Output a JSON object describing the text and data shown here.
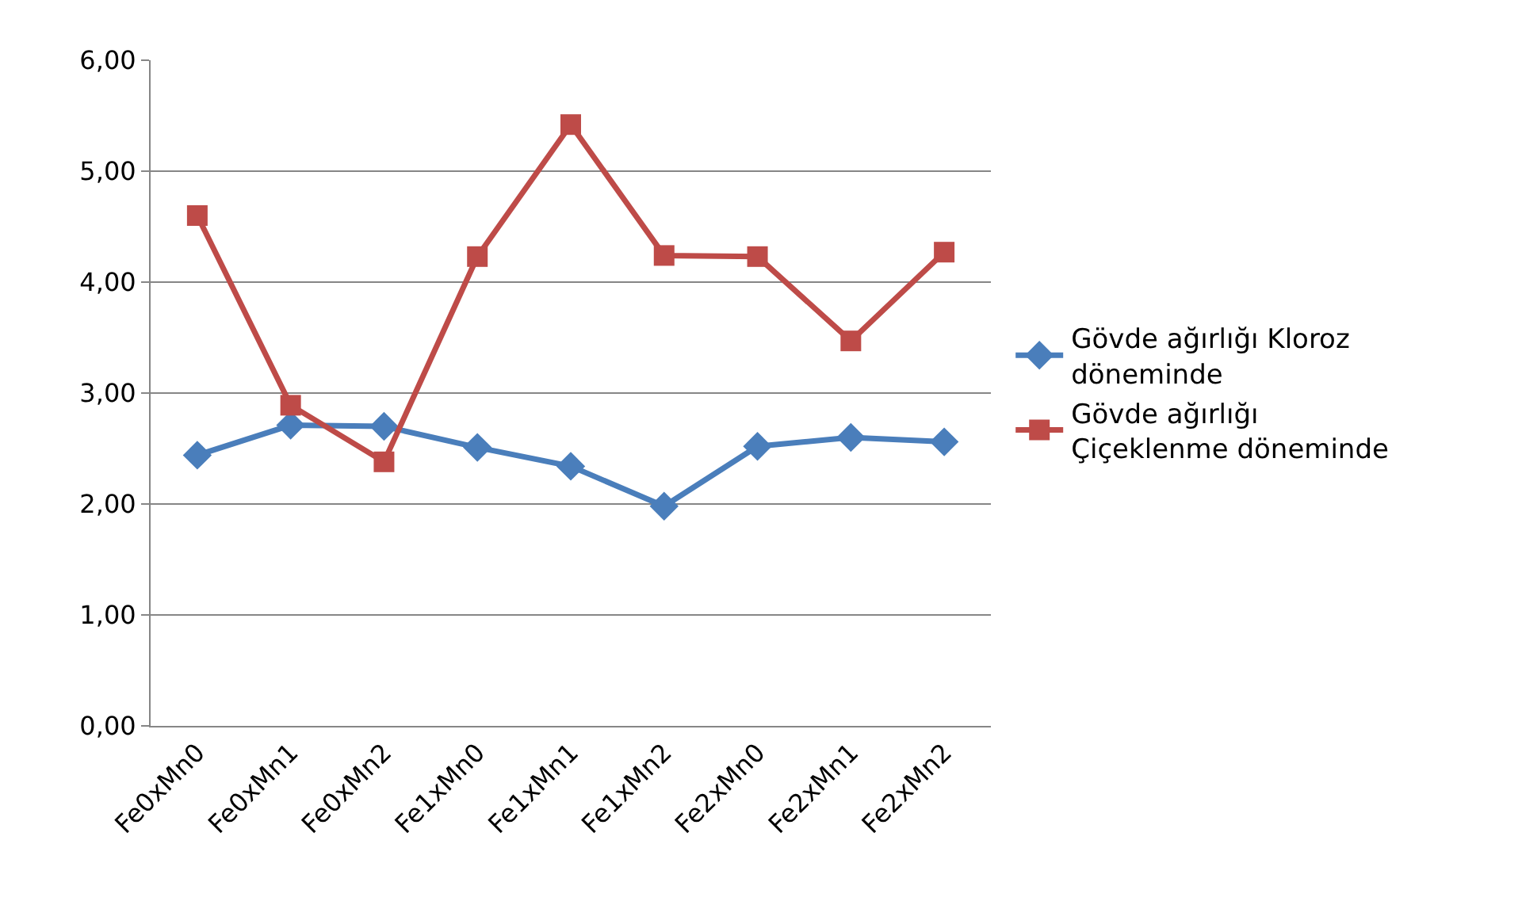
{
  "chart_data": {
    "type": "line",
    "categories": [
      "Fe0xMn0",
      "Fe0xMn1",
      "Fe0xMn2",
      "Fe1xMn0",
      "Fe1xMn1",
      "Fe1xMn2",
      "Fe2xMn0",
      "Fe2xMn1",
      "Fe2xMn2"
    ],
    "series": [
      {
        "name": "Gövde ağırlığı Kloroz döneminde",
        "color": "#4a7ebb",
        "marker": "diamond",
        "values": [
          2.44,
          2.71,
          2.7,
          2.51,
          2.34,
          1.98,
          2.52,
          2.6,
          2.56
        ]
      },
      {
        "name": "Gövde ağırlığı Çiçeklenme döneminde",
        "color": "#be4b48",
        "marker": "square",
        "values": [
          4.6,
          2.89,
          2.38,
          4.23,
          5.42,
          4.24,
          4.23,
          3.47,
          4.27
        ]
      }
    ],
    "ylim": [
      0,
      6
    ],
    "yticks": [
      {
        "value": 0,
        "label": "0,00"
      },
      {
        "value": 1,
        "label": "1,00"
      },
      {
        "value": 2,
        "label": "2,00"
      },
      {
        "value": 3,
        "label": "3,00"
      },
      {
        "value": 4,
        "label": "4,00"
      },
      {
        "value": 5,
        "label": "5,00"
      },
      {
        "value": 6,
        "label": "6,00"
      }
    ],
    "grid": "y",
    "legend": "right",
    "line_style": "solid"
  }
}
